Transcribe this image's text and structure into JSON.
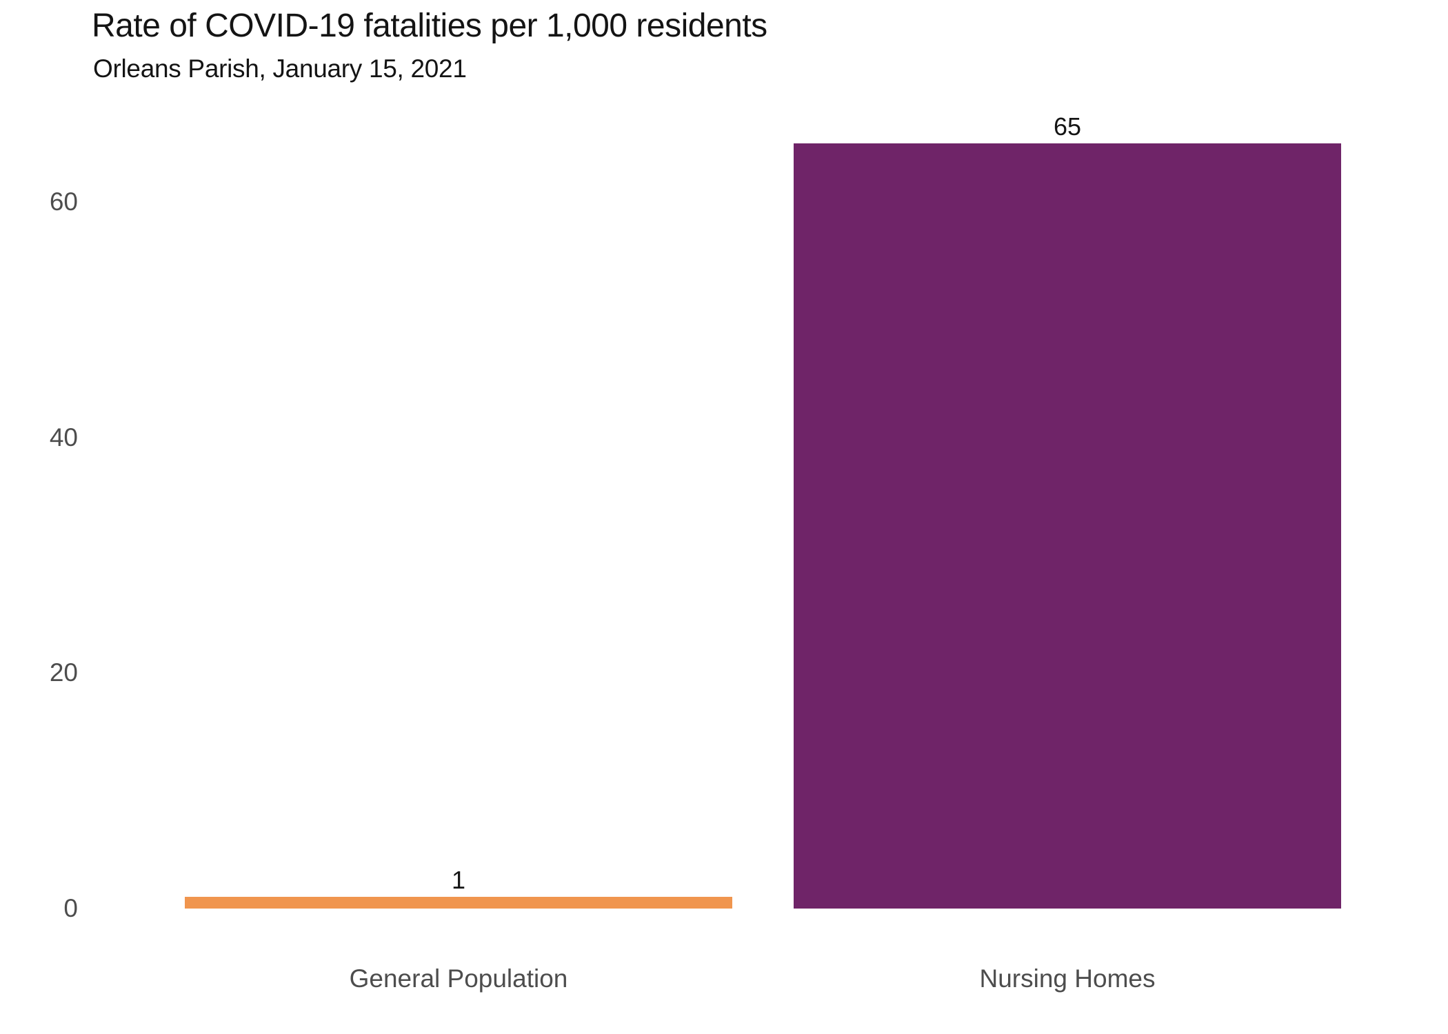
{
  "header": {
    "title": "Rate of COVID-19 fatalities per 1,000 residents",
    "subtitle": "Orleans Parish, January 15, 2021"
  },
  "colors": {
    "background": "#ffffff",
    "title_text": "#141414",
    "axis_text": "#4d4d4d",
    "value_label_text": "#141414",
    "general_population_bar": "#F0954E",
    "nursing_homes_bar": "#6F2468"
  },
  "chart_data": {
    "type": "bar",
    "title": "Rate of COVID-19 fatalities per 1,000 residents",
    "subtitle": "Orleans Parish, January 15, 2021",
    "categories": [
      "General Population",
      "Nursing Homes"
    ],
    "values": [
      1,
      65
    ],
    "value_labels": [
      "1",
      "65"
    ],
    "bar_colors": [
      "#F0954E",
      "#6F2468"
    ],
    "xlabel": "",
    "ylabel": "",
    "yticks": [
      0,
      20,
      40,
      60
    ],
    "ylim": [
      0,
      65
    ],
    "grid": false,
    "legend": "none",
    "orientation": "vertical"
  }
}
